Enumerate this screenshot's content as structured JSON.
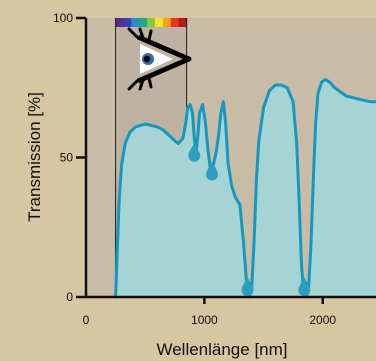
{
  "chart_data": {
    "type": "area",
    "title": "",
    "xlabel": "Wellenlänge [nm]",
    "ylabel": "Transmission [%]",
    "xlim": [
      0,
      2450
    ],
    "ylim": [
      0,
      100
    ],
    "x_ticks": [
      0,
      1000,
      2000
    ],
    "y_ticks": [
      0,
      50,
      100
    ],
    "grid": false,
    "colors": {
      "background": "#d8c6a3",
      "plot_area": "#c9bca6",
      "visible_band": "#c0b2a2",
      "curve": "#1598bf",
      "fill": "#a6d3d4",
      "drop": "#2d9dc0"
    },
    "visible_range_nm": [
      250,
      850
    ],
    "spectrum_colors": [
      "#5b2a86",
      "#3b3fb0",
      "#1f8fd0",
      "#1fa88a",
      "#8cc63f",
      "#f2e531",
      "#f7a21b",
      "#e8331f",
      "#b31b1b"
    ],
    "eye_icon": "eye-icon",
    "drop_icon": "water-drop-icon",
    "series": [
      {
        "x": [
          250,
          265,
          280,
          300,
          330,
          370,
          420,
          500,
          600,
          650,
          700,
          750,
          780,
          820,
          845,
          860,
          880,
          900,
          915,
          930,
          945,
          960,
          985,
          1010,
          1030,
          1050,
          1060,
          1080,
          1100,
          1120,
          1140,
          1160,
          1180,
          1200,
          1230,
          1260,
          1300,
          1330,
          1360,
          1380,
          1400,
          1420,
          1440,
          1460,
          1500,
          1550,
          1600,
          1650,
          1700,
          1750,
          1780,
          1800,
          1820,
          1840,
          1860,
          1880,
          1900,
          1920,
          1940,
          1960,
          1990,
          2020,
          2060,
          2100,
          2200,
          2300,
          2400,
          2450
        ],
        "y": [
          0,
          18,
          34,
          47,
          55,
          59,
          61,
          62,
          61,
          60,
          58,
          56,
          55,
          57,
          63,
          68,
          69,
          66,
          57,
          52,
          58,
          66,
          69,
          62,
          53,
          46,
          45,
          48,
          52,
          58,
          66,
          70,
          62,
          48,
          40,
          36,
          33,
          20,
          3,
          0,
          3,
          20,
          42,
          56,
          68,
          74,
          76,
          76,
          75,
          70,
          55,
          35,
          12,
          1,
          0,
          3,
          18,
          42,
          62,
          73,
          77,
          78,
          77,
          75,
          72,
          71,
          70,
          70
        ],
        "absorption_bands_nm": [
          940,
          1090,
          1390,
          1870
        ]
      }
    ]
  }
}
